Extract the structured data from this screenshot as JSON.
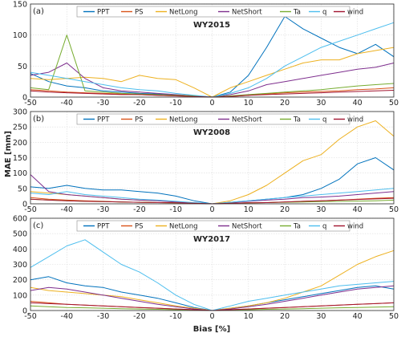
{
  "figure": {
    "ylabel": "MAE [mm]",
    "xlabel": "Bias [%]"
  },
  "chart_data": [
    {
      "type": "line",
      "panel_label": "(a)",
      "title": "WY2015",
      "xlim": [
        -50,
        50
      ],
      "ylim": [
        0,
        150
      ],
      "xticks": [
        -50,
        -40,
        -30,
        -20,
        -10,
        0,
        10,
        20,
        30,
        40,
        50
      ],
      "yticks": [
        0,
        50,
        100,
        150
      ],
      "grid": true,
      "legend_position": "top",
      "x": [
        -50,
        -45,
        -40,
        -35,
        -30,
        -25,
        -20,
        -15,
        -10,
        -5,
        0,
        5,
        10,
        15,
        20,
        25,
        30,
        35,
        40,
        45,
        50
      ],
      "series": [
        {
          "name": "PPT",
          "color": "#0072BD",
          "values": [
            38,
            25,
            18,
            15,
            10,
            8,
            6,
            5,
            3,
            2,
            0,
            8,
            35,
            80,
            130,
            110,
            95,
            80,
            70,
            85,
            65
          ]
        },
        {
          "name": "PS",
          "color": "#D95319",
          "values": [
            12,
            10,
            8,
            7,
            6,
            5,
            4,
            3,
            2,
            1,
            0,
            1,
            3,
            5,
            7,
            8,
            9,
            10,
            12,
            13,
            15
          ]
        },
        {
          "name": "NetLong",
          "color": "#EDB120",
          "values": [
            30,
            28,
            30,
            32,
            30,
            25,
            35,
            30,
            28,
            15,
            0,
            15,
            25,
            35,
            45,
            55,
            60,
            60,
            70,
            75,
            80
          ]
        },
        {
          "name": "NetShort",
          "color": "#7E2F8E",
          "values": [
            35,
            40,
            55,
            30,
            15,
            10,
            8,
            6,
            4,
            2,
            0,
            4,
            10,
            20,
            25,
            30,
            35,
            40,
            45,
            48,
            55
          ]
        },
        {
          "name": "Ta",
          "color": "#77AC30",
          "values": [
            15,
            12,
            100,
            10,
            8,
            6,
            5,
            4,
            3,
            2,
            0,
            2,
            4,
            6,
            8,
            10,
            12,
            15,
            18,
            20,
            22
          ]
        },
        {
          "name": "q",
          "color": "#4DBEEE",
          "values": [
            40,
            35,
            30,
            25,
            20,
            15,
            12,
            10,
            6,
            3,
            0,
            6,
            15,
            30,
            50,
            65,
            80,
            90,
            100,
            110,
            120
          ]
        },
        {
          "name": "wind",
          "color": "#A2142F",
          "values": [
            10,
            8,
            7,
            6,
            5,
            4,
            4,
            3,
            2,
            1,
            0,
            1,
            3,
            4,
            5,
            6,
            7,
            8,
            9,
            10,
            11
          ]
        }
      ]
    },
    {
      "type": "line",
      "panel_label": "(b)",
      "title": "WY2008",
      "xlim": [
        -50,
        50
      ],
      "ylim": [
        0,
        300
      ],
      "xticks": [
        -50,
        -40,
        -30,
        -20,
        -10,
        0,
        10,
        20,
        30,
        40,
        50
      ],
      "yticks": [
        0,
        50,
        100,
        150,
        200,
        250,
        300
      ],
      "grid": true,
      "legend_position": "top",
      "x": [
        -50,
        -45,
        -40,
        -35,
        -30,
        -25,
        -20,
        -15,
        -10,
        -5,
        0,
        5,
        10,
        15,
        20,
        25,
        30,
        35,
        40,
        45,
        50
      ],
      "series": [
        {
          "name": "PPT",
          "color": "#0072BD",
          "values": [
            55,
            50,
            60,
            50,
            45,
            45,
            40,
            35,
            25,
            10,
            0,
            5,
            10,
            15,
            20,
            30,
            50,
            80,
            130,
            150,
            110
          ]
        },
        {
          "name": "PS",
          "color": "#D95319",
          "values": [
            20,
            15,
            12,
            10,
            8,
            6,
            5,
            4,
            3,
            2,
            0,
            2,
            3,
            4,
            6,
            8,
            10,
            12,
            15,
            18,
            20
          ]
        },
        {
          "name": "NetLong",
          "color": "#EDB120",
          "values": [
            40,
            35,
            30,
            25,
            20,
            15,
            12,
            10,
            6,
            3,
            0,
            10,
            30,
            60,
            100,
            140,
            160,
            210,
            250,
            270,
            220
          ]
        },
        {
          "name": "NetShort",
          "color": "#7E2F8E",
          "values": [
            95,
            40,
            30,
            25,
            20,
            15,
            12,
            10,
            6,
            3,
            0,
            4,
            8,
            12,
            15,
            20,
            22,
            25,
            30,
            35,
            40
          ]
        },
        {
          "name": "Ta",
          "color": "#77AC30",
          "values": [
            15,
            12,
            10,
            8,
            7,
            6,
            5,
            4,
            3,
            2,
            0,
            2,
            3,
            4,
            5,
            6,
            7,
            8,
            9,
            10,
            12
          ]
        },
        {
          "name": "q",
          "color": "#4DBEEE",
          "values": [
            35,
            30,
            40,
            30,
            25,
            20,
            15,
            12,
            8,
            4,
            0,
            5,
            10,
            15,
            20,
            25,
            30,
            35,
            40,
            45,
            50
          ]
        },
        {
          "name": "wind",
          "color": "#A2142F",
          "values": [
            15,
            12,
            10,
            8,
            7,
            6,
            5,
            4,
            3,
            2,
            0,
            2,
            3,
            4,
            6,
            8,
            10,
            12,
            14,
            16,
            18
          ]
        }
      ]
    },
    {
      "type": "line",
      "panel_label": "(c)",
      "title": "WY2017",
      "xlim": [
        -50,
        50
      ],
      "ylim": [
        0,
        600
      ],
      "xticks": [
        -50,
        -40,
        -30,
        -20,
        -10,
        0,
        10,
        20,
        30,
        40,
        50
      ],
      "yticks": [
        0,
        100,
        200,
        300,
        400,
        500,
        600
      ],
      "grid": true,
      "legend_position": "top",
      "x": [
        -50,
        -45,
        -40,
        -35,
        -30,
        -25,
        -20,
        -15,
        -10,
        -5,
        0,
        5,
        10,
        15,
        20,
        25,
        30,
        35,
        40,
        45,
        50
      ],
      "series": [
        {
          "name": "PPT",
          "color": "#0072BD",
          "values": [
            200,
            220,
            180,
            160,
            150,
            120,
            100,
            80,
            50,
            20,
            0,
            15,
            30,
            50,
            70,
            90,
            110,
            130,
            150,
            160,
            140
          ]
        },
        {
          "name": "PS",
          "color": "#D95319",
          "values": [
            60,
            50,
            40,
            35,
            30,
            25,
            20,
            15,
            10,
            5,
            0,
            5,
            10,
            15,
            20,
            25,
            30,
            35,
            40,
            45,
            50
          ]
        },
        {
          "name": "NetLong",
          "color": "#EDB120",
          "values": [
            150,
            130,
            120,
            110,
            100,
            90,
            70,
            50,
            30,
            15,
            0,
            15,
            30,
            50,
            80,
            120,
            160,
            230,
            300,
            350,
            390
          ]
        },
        {
          "name": "NetShort",
          "color": "#7E2F8E",
          "values": [
            130,
            150,
            140,
            120,
            100,
            80,
            60,
            40,
            25,
            10,
            0,
            10,
            25,
            40,
            60,
            80,
            100,
            120,
            140,
            150,
            160
          ]
        },
        {
          "name": "Ta",
          "color": "#77AC30",
          "values": [
            30,
            25,
            20,
            18,
            15,
            12,
            10,
            8,
            5,
            3,
            0,
            3,
            5,
            8,
            10,
            12,
            15,
            18,
            20,
            22,
            25
          ]
        },
        {
          "name": "q",
          "color": "#4DBEEE",
          "values": [
            280,
            350,
            420,
            460,
            380,
            300,
            250,
            180,
            100,
            40,
            0,
            30,
            60,
            80,
            100,
            120,
            140,
            160,
            170,
            180,
            190
          ]
        },
        {
          "name": "wind",
          "color": "#A2142F",
          "values": [
            50,
            45,
            40,
            35,
            30,
            25,
            20,
            15,
            10,
            5,
            0,
            5,
            10,
            15,
            20,
            25,
            30,
            35,
            40,
            45,
            50
          ]
        }
      ]
    }
  ]
}
